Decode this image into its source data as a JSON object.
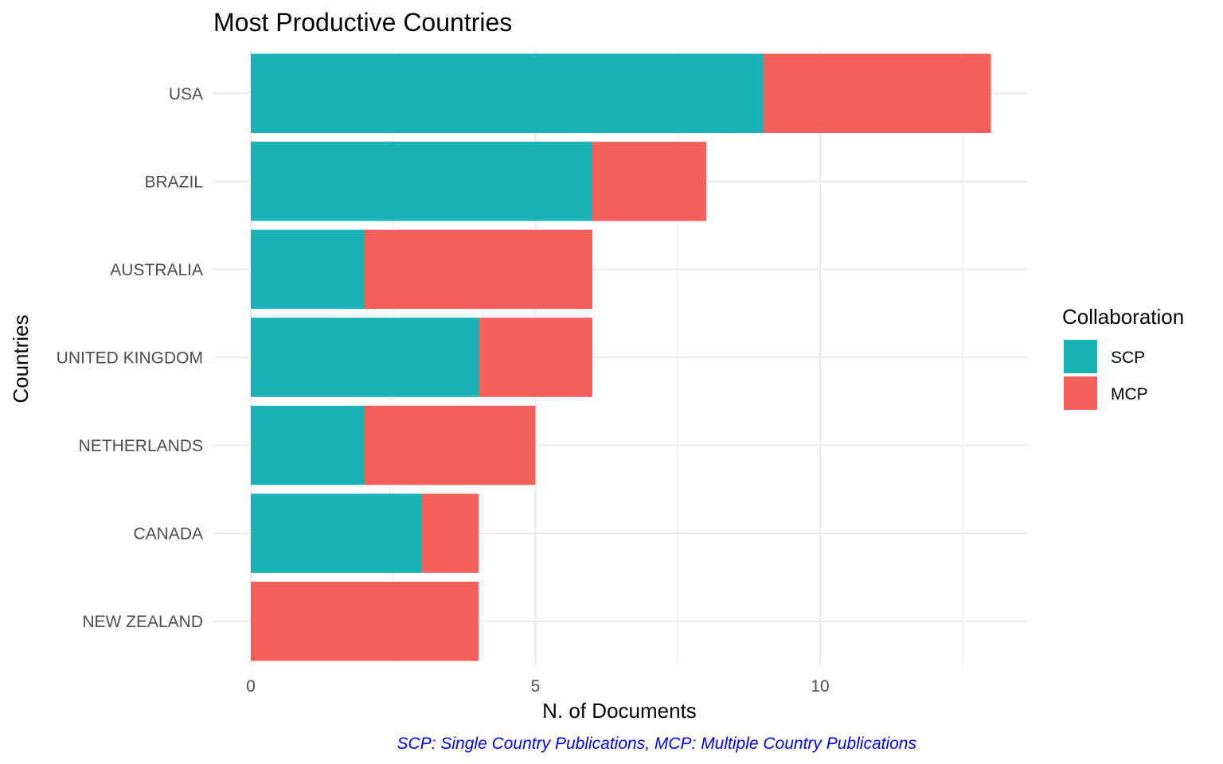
{
  "chart_data": {
    "type": "bar",
    "orientation": "horizontal",
    "stacked": true,
    "title": "Most Productive Countries",
    "xlabel": "N. of Documents",
    "ylabel": "Countries",
    "caption": "SCP: Single Country Publications, MCP: Multiple Country Publications",
    "xlim": [
      0,
      13.6
    ],
    "xticks": [
      0,
      5,
      10
    ],
    "grid": true,
    "categories": [
      "USA",
      "BRAZIL",
      "AUSTRALIA",
      "UNITED KINGDOM",
      "NETHERLANDS",
      "CANADA",
      "NEW ZEALAND"
    ],
    "series": [
      {
        "name": "SCP",
        "color": "#19b2b7",
        "values": [
          9,
          6,
          2,
          4,
          2,
          3,
          0
        ]
      },
      {
        "name": "MCP",
        "color": "#f3605c",
        "values": [
          4,
          2,
          4,
          2,
          3,
          1,
          4
        ]
      }
    ],
    "legend": {
      "title": "Collaboration",
      "position": "right"
    }
  }
}
